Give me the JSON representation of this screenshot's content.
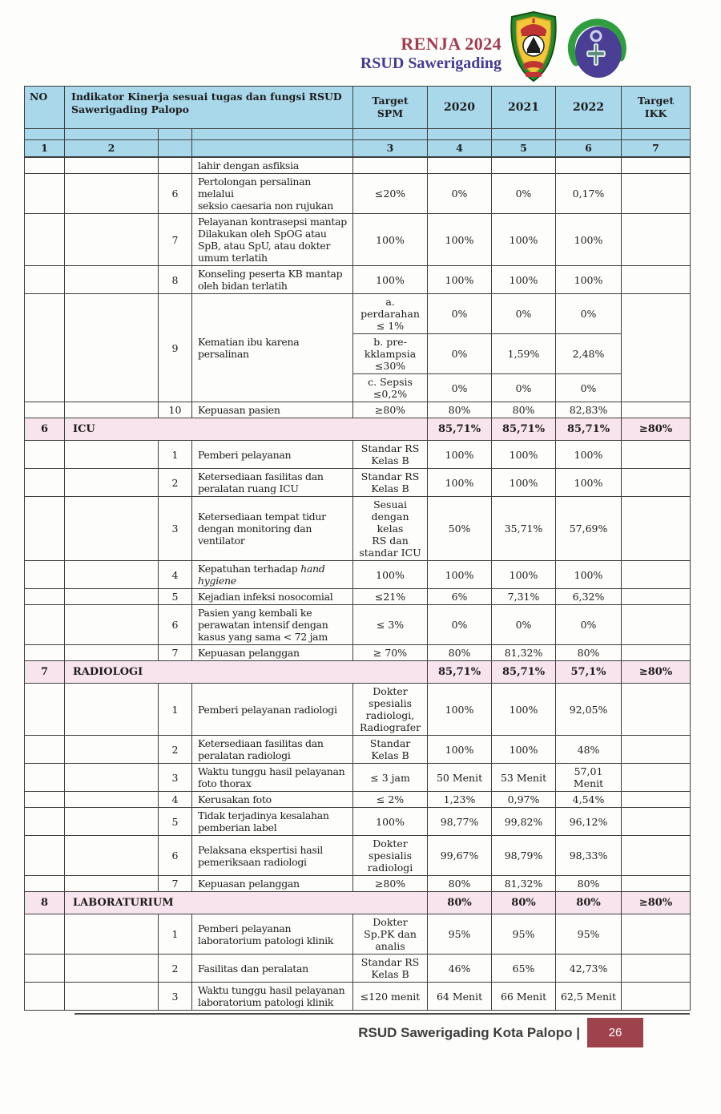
{
  "page": {
    "header": {
      "title_line1": "RENJA 2024",
      "title_line2": "RSUD Sawerigading",
      "logo1": "palopo-city-crest",
      "logo2": "rsud-hospital-logo"
    },
    "footer": {
      "text": "RSUD Sawerigading Kota Palopo |",
      "page_number": "26"
    },
    "colors": {
      "header_blue": "#a9d8ea",
      "section_pink": "#f8e4ec",
      "title_red": "#a23c50",
      "title_purple": "#453c91",
      "page_box_red": "#9e424c"
    }
  },
  "table": {
    "header": {
      "no": "NO",
      "indikator": "Indikator Kinerja sesuai tugas dan fungsi RSUD\nSawerigading Palopo",
      "target_spm": "Target\nSPM",
      "y2020": "2020",
      "y2021": "2021",
      "y2022": "2022",
      "target_ikk": "Target\nIKK",
      "col_numbers": [
        "1",
        "2",
        "",
        "",
        "3",
        "4",
        "5",
        "6",
        "7"
      ]
    },
    "rows": [
      {
        "kind": "continuation",
        "indicator": "lahir dengan asfiksia"
      },
      {
        "kind": "data",
        "no": "6",
        "indicator": "Pertolongan persalinan melalui\nseksio caesaria non rujukan",
        "target": "≤20%",
        "v2020": "0%",
        "v2021": "0%",
        "v2022": "0,17%"
      },
      {
        "kind": "data",
        "no": "7",
        "indicator": "Pelayanan kontrasepsi mantap\nDilakukan oleh SpOG atau\nSpB, atau SpU, atau dokter\numum terlatih",
        "target": "100%",
        "v2020": "100%",
        "v2021": "100%",
        "v2022": "100%"
      },
      {
        "kind": "data",
        "no": "8",
        "indicator": "Konseling peserta KB mantap\noleh bidan terlatih",
        "target": "100%",
        "v2020": "100%",
        "v2021": "100%",
        "v2022": "100%"
      },
      {
        "kind": "group",
        "no": "9",
        "indicator": "Kematian ibu karena\npersalinan",
        "subrows": [
          {
            "target": "a.\nperdarahan\n≤ 1%",
            "v2020": "0%",
            "v2021": "0%",
            "v2022": "0%"
          },
          {
            "target": "b. pre-\nkklampsia\n≤30%",
            "v2020": "0%",
            "v2021": "1,59%",
            "v2022": "2,48%"
          },
          {
            "target": "c. Sepsis\n≤0,2%",
            "v2020": "0%",
            "v2021": "0%",
            "v2022": "0%"
          }
        ]
      },
      {
        "kind": "data",
        "no": "10",
        "indicator": "Kepuasan pasien",
        "target": "≥80%",
        "v2020": "80%",
        "v2021": "80%",
        "v2022": "82,83%"
      },
      {
        "kind": "section",
        "no": "6",
        "name": "ICU",
        "v2020": "85,71%",
        "v2021": "85,71%",
        "v2022": "85,71%",
        "ikk": "≥80%"
      },
      {
        "kind": "data",
        "no": "1",
        "indicator": "Pemberi pelayanan",
        "target": "Standar RS\nKelas B",
        "v2020": "100%",
        "v2021": "100%",
        "v2022": "100%"
      },
      {
        "kind": "data",
        "no": "2",
        "indicator": "Ketersediaan fasilitas dan\nperalatan ruang ICU",
        "target": "Standar RS\nKelas B",
        "v2020": "100%",
        "v2021": "100%",
        "v2022": "100%"
      },
      {
        "kind": "data",
        "no": "3",
        "indicator": "Ketersediaan tempat tidur\ndengan monitoring dan\nventilator",
        "target": "Sesuai\ndengan kelas\nRS dan\nstandar ICU",
        "v2020": "50%",
        "v2021": "35,71%",
        "v2022": "57,69%"
      },
      {
        "kind": "data",
        "no": "4",
        "indicator": "Kepatuhan terhadap *hand\nhygiene*",
        "target": "100%",
        "v2020": "100%",
        "v2021": "100%",
        "v2022": "100%"
      },
      {
        "kind": "data",
        "no": "5",
        "indicator": "Kejadian infeksi nosocomial",
        "target": "≤21%",
        "v2020": "6%",
        "v2021": "7,31%",
        "v2022": "6,32%"
      },
      {
        "kind": "data",
        "no": "6",
        "indicator": "Pasien yang kembali ke\nperawatan intensif dengan\nkasus yang sama < 72 jam",
        "target": "≤ 3%",
        "v2020": "0%",
        "v2021": "0%",
        "v2022": "0%"
      },
      {
        "kind": "data",
        "no": "7",
        "indicator": "Kepuasan pelanggan",
        "target": "≥ 70%",
        "v2020": "80%",
        "v2021": "81,32%",
        "v2022": "80%"
      },
      {
        "kind": "section",
        "no": "7",
        "name": "RADIOLOGI",
        "v2020": "85,71%",
        "v2021": "85,71%",
        "v2022": "57,1%",
        "ikk": "≥80%"
      },
      {
        "kind": "data",
        "no": "1",
        "indicator": "Pemberi pelayanan radiologi",
        "target": "Dokter\nspesialis\nradiologi,\nRadiografer",
        "v2020": "100%",
        "v2021": "100%",
        "v2022": "92,05%"
      },
      {
        "kind": "data",
        "no": "2",
        "indicator": "Ketersediaan fasilitas dan\nperalatan radiologi",
        "target": "Standar\nKelas B",
        "v2020": "100%",
        "v2021": "100%",
        "v2022": "48%"
      },
      {
        "kind": "data",
        "no": "3",
        "indicator": "Waktu tunggu hasil pelayanan\nfoto thorax",
        "target": "≤ 3 jam",
        "v2020": "50 Menit",
        "v2021": "53 Menit",
        "v2022": "57,01\nMenit"
      },
      {
        "kind": "data",
        "no": "4",
        "indicator": "Kerusakan foto",
        "target": "≤ 2%",
        "v2020": "1,23%",
        "v2021": "0,97%",
        "v2022": "4,54%"
      },
      {
        "kind": "data",
        "no": "5",
        "indicator": "Tidak terjadinya kesalahan\npemberian label",
        "target": "100%",
        "v2020": "98,77%",
        "v2021": "99,82%",
        "v2022": "96,12%"
      },
      {
        "kind": "data",
        "no": "6",
        "indicator": "Pelaksana ekspertisi hasil\npemeriksaan radiologi",
        "target": "Dokter\nspesialis\nradiologi",
        "v2020": "99,67%",
        "v2021": "98,79%",
        "v2022": "98,33%"
      },
      {
        "kind": "data",
        "no": "7",
        "indicator": "Kepuasan pelanggan",
        "target": "≥80%",
        "v2020": "80%",
        "v2021": "81,32%",
        "v2022": "80%"
      },
      {
        "kind": "section",
        "no": "8",
        "name": "LABORATURIUM",
        "v2020": "80%",
        "v2021": "80%",
        "v2022": "80%",
        "ikk": "≥80%"
      },
      {
        "kind": "data",
        "no": "1",
        "indicator": "Pemberi pelayanan\nlaboratorium patologi klinik",
        "target": "Dokter\nSp.PK dan\nanalis",
        "v2020": "95%",
        "v2021": "95%",
        "v2022": "95%"
      },
      {
        "kind": "data",
        "no": "2",
        "indicator": "Fasilitas dan peralatan",
        "target": "Standar RS\nKelas B",
        "v2020": "46%",
        "v2021": "65%",
        "v2022": "42,73%"
      },
      {
        "kind": "data",
        "no": "3",
        "indicator": "Waktu tunggu hasil pelayanan\nlaboratorium patologi klinik",
        "target": "≤120 menit",
        "v2020": "64 Menit",
        "v2021": "66 Menit",
        "v2022": "62,5 Menit"
      }
    ]
  }
}
